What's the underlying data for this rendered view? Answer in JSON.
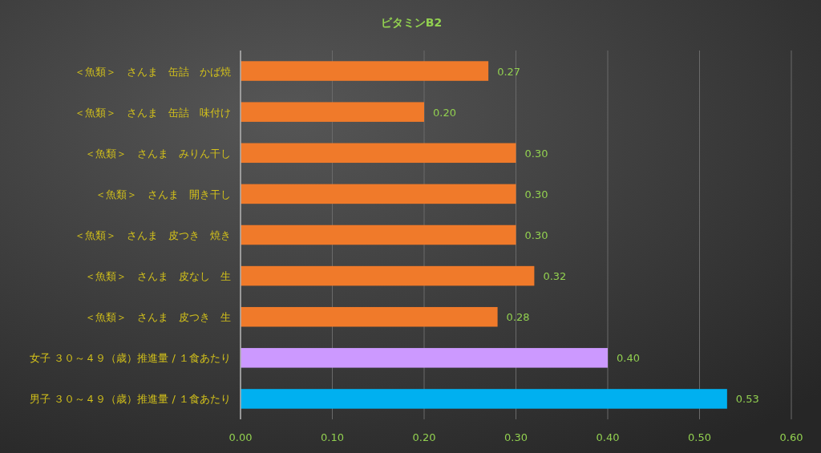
{
  "chart_data": {
    "type": "bar",
    "orientation": "horizontal",
    "title": "ビタミンB2",
    "categories": [
      "＜魚類＞　さんま　缶詰　かば焼",
      "＜魚類＞　さんま　缶詰　味付け",
      "＜魚類＞　さんま　みりん干し",
      "＜魚類＞　さんま　開き干し",
      "＜魚類＞　さんま　皮つき　焼き",
      "＜魚類＞　さんま　皮なし　生",
      "＜魚類＞　さんま　皮つき　生",
      "女子 ３０～４９（歳）推進量 / １食あたり",
      "男子 ３０～４９（歳）推進量 / １食あたり"
    ],
    "values": [
      0.27,
      0.2,
      0.3,
      0.3,
      0.3,
      0.32,
      0.28,
      0.4,
      0.53
    ],
    "value_labels": [
      "0.27",
      "0.20",
      "0.30",
      "0.30",
      "0.30",
      "0.32",
      "0.28",
      "0.40",
      "0.53"
    ],
    "colors": [
      "#f07a2a",
      "#f07a2a",
      "#f07a2a",
      "#f07a2a",
      "#f07a2a",
      "#f07a2a",
      "#f07a2a",
      "#cc99ff",
      "#00b0f0"
    ],
    "xlim": [
      0,
      0.6
    ],
    "xticks": [
      {
        "value": 0,
        "label": "0.00"
      },
      {
        "value": 0.1,
        "label": "0.10"
      },
      {
        "value": 0.2,
        "label": "0.20"
      },
      {
        "value": 0.3,
        "label": "0.30"
      },
      {
        "value": 0.4,
        "label": "0.40"
      },
      {
        "value": 0.5,
        "label": "0.50"
      },
      {
        "value": 0.6,
        "label": "0.60"
      }
    ],
    "grid": "x"
  }
}
